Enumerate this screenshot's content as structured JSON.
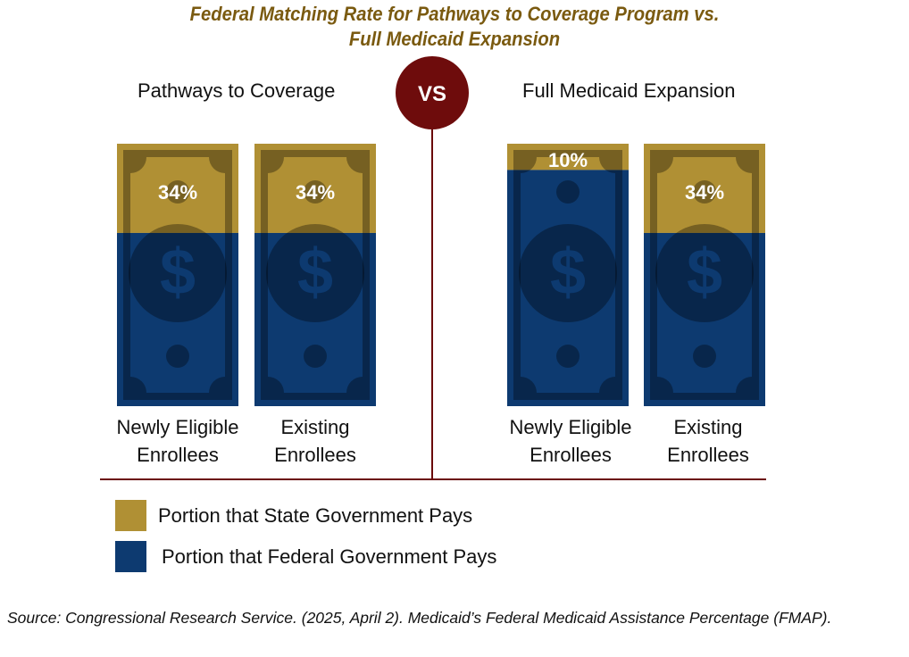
{
  "chart_data": {
    "type": "bar",
    "title": "Federal Matching Rate for Pathways to Coverage Program vs. Full Medicaid Expansion",
    "subtype": "stacked-pictorial",
    "groups": [
      {
        "name": "Pathways to Coverage",
        "categories": [
          "Newly Eligible Enrollees",
          "Existing Enrollees"
        ],
        "state_share_pct": [
          34,
          34
        ],
        "federal_share_pct": [
          66,
          66
        ],
        "labels": [
          "34%",
          "34%"
        ]
      },
      {
        "name": "Full Medicaid Expansion",
        "categories": [
          "Newly Eligible Enrollees",
          "Existing Enrollees"
        ],
        "state_share_pct": [
          10,
          34
        ],
        "federal_share_pct": [
          90,
          66
        ],
        "labels": [
          "10%",
          "34%"
        ]
      }
    ],
    "separator_label": "VS",
    "legend": [
      {
        "name": "Portion that State Government Pays",
        "color": "#b09034"
      },
      {
        "name": "Portion that Federal Government Pays",
        "color": "#0d3a70"
      }
    ],
    "ylim": [
      0,
      100
    ]
  },
  "title_line1": "Federal Matching Rate for Pathways to Coverage Program vs.",
  "title_line2": "Full Medicaid Expansion",
  "category_lines": [
    [
      "Newly Eligible",
      "Enrollees"
    ],
    [
      "Existing",
      "Enrollees"
    ],
    [
      "Newly Eligible",
      "Enrollees"
    ],
    [
      "Existing",
      "Enrollees"
    ]
  ],
  "source": "Source: Congressional Research Service. (2025, April 2). Medicaid’s Federal Medicaid Assistance Percentage (FMAP).",
  "colors": {
    "title": "#7a5a10",
    "state": "#b09034",
    "federal": "#0d3a70",
    "divider": "#6b0a0a",
    "vs_circle": "#6e0c0c"
  }
}
